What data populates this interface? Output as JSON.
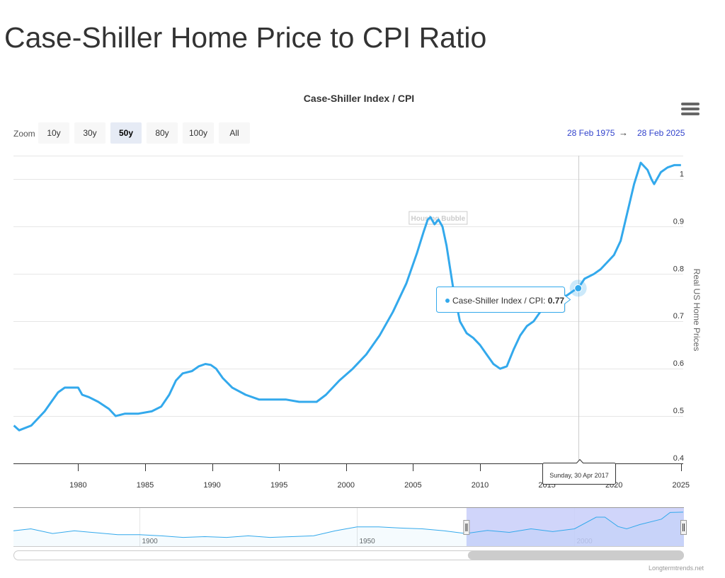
{
  "page": {
    "title": "Case-Shiller Home Price to CPI Ratio"
  },
  "toolbar": {
    "zoom_label": "Zoom",
    "zoom_buttons": [
      "10y",
      "30y",
      "50y",
      "80y",
      "100y",
      "All"
    ],
    "active_zoom": "50y",
    "range_from": "28 Feb 1975",
    "range_arrow": "→",
    "range_to": "28 Feb 2025"
  },
  "tooltip": {
    "series_label": "Case-Shiller Index / CPI: ",
    "value": "0.77",
    "date_label": "Sunday, 30 Apr 2017"
  },
  "credit": "Longtermtrends.net",
  "colors": {
    "series": "#33a9ec",
    "navigator_fill": "#ccd2fb",
    "navigator_mask": "#c8cef9",
    "range_text": "#3344cc",
    "gridline": "#e6e6e6"
  },
  "chart_data": {
    "type": "line",
    "title": "Case-Shiller Index / CPI",
    "ylabel": "Real US Home Prices",
    "xlim": [
      1975.17,
      2025.17
    ],
    "ylim": [
      0.4,
      1.05
    ],
    "yticks": [
      0.4,
      0.5,
      0.6,
      0.7,
      0.8,
      0.9,
      1
    ],
    "xticks": [
      1980,
      1985,
      1990,
      1995,
      2000,
      2005,
      2010,
      2015,
      2020,
      2025
    ],
    "grid": true,
    "annotations": [
      {
        "label": "Housing Bubble",
        "x": 2006.9,
        "y": 0.92
      }
    ],
    "highlight": {
      "x": 2017.33,
      "y": 0.77
    },
    "series": [
      {
        "name": "Case-Shiller Index / CPI",
        "x": [
          1975.2,
          1975.6,
          1976.5,
          1977.5,
          1978.0,
          1978.5,
          1979.0,
          1979.5,
          1980.0,
          1980.3,
          1980.8,
          1981.5,
          1982.3,
          1982.8,
          1983.5,
          1984.5,
          1985.5,
          1986.2,
          1986.8,
          1987.3,
          1987.8,
          1988.5,
          1989.0,
          1989.5,
          1989.9,
          1990.3,
          1990.8,
          1991.5,
          1992.5,
          1993.5,
          1994.5,
          1995.5,
          1996.5,
          1997.2,
          1997.8,
          1998.5,
          1999.5,
          2000.5,
          2001.5,
          2002.5,
          2003.5,
          2004.5,
          2005.3,
          2005.8,
          2006.1,
          2006.3,
          2006.6,
          2006.9,
          2007.2,
          2007.5,
          2008.0,
          2008.5,
          2009.0,
          2009.5,
          2010.0,
          2010.5,
          2011.0,
          2011.5,
          2012.0,
          2012.5,
          2013.0,
          2013.5,
          2014.0,
          2014.5,
          2015.0,
          2015.5,
          2016.0,
          2016.5,
          2017.0,
          2017.33,
          2017.8,
          2018.5,
          2019.0,
          2019.5,
          2020.0,
          2020.5,
          2021.0,
          2021.5,
          2022.0,
          2022.5,
          2022.8,
          2023.0,
          2023.5,
          2024.0,
          2024.5,
          2025.0
        ],
        "y": [
          0.48,
          0.47,
          0.48,
          0.51,
          0.53,
          0.55,
          0.56,
          0.56,
          0.56,
          0.545,
          0.54,
          0.53,
          0.515,
          0.5,
          0.505,
          0.505,
          0.51,
          0.52,
          0.545,
          0.575,
          0.59,
          0.595,
          0.605,
          0.61,
          0.608,
          0.6,
          0.58,
          0.56,
          0.545,
          0.535,
          0.535,
          0.535,
          0.53,
          0.53,
          0.53,
          0.545,
          0.575,
          0.6,
          0.63,
          0.67,
          0.72,
          0.78,
          0.845,
          0.89,
          0.915,
          0.92,
          0.905,
          0.915,
          0.9,
          0.86,
          0.77,
          0.7,
          0.675,
          0.665,
          0.65,
          0.63,
          0.61,
          0.6,
          0.605,
          0.64,
          0.67,
          0.69,
          0.7,
          0.72,
          0.725,
          0.74,
          0.75,
          0.755,
          0.765,
          0.77,
          0.79,
          0.8,
          0.81,
          0.825,
          0.84,
          0.87,
          0.93,
          0.99,
          1.035,
          1.02,
          1.0,
          0.99,
          1.015,
          1.025,
          1.03,
          1.03
        ]
      }
    ]
  },
  "navigator": {
    "xlim": [
      1871,
      2025.17
    ],
    "labels": [
      "1900",
      "1950",
      "2000"
    ],
    "selection": [
      1975.17,
      2025.17
    ],
    "series": {
      "x": [
        1871,
        1875,
        1880,
        1885,
        1890,
        1895,
        1900,
        1905,
        1910,
        1915,
        1920,
        1925,
        1930,
        1935,
        1940,
        1945,
        1950,
        1955,
        1960,
        1965,
        1970,
        1975,
        1980,
        1985,
        1990,
        1995,
        2000,
        2005,
        2007,
        2010,
        2012,
        2015,
        2020,
        2022,
        2025
      ],
      "y": [
        0.55,
        0.6,
        0.48,
        0.55,
        0.5,
        0.45,
        0.45,
        0.42,
        0.38,
        0.4,
        0.38,
        0.42,
        0.38,
        0.4,
        0.42,
        0.55,
        0.65,
        0.65,
        0.62,
        0.6,
        0.55,
        0.48,
        0.56,
        0.51,
        0.6,
        0.53,
        0.6,
        0.9,
        0.9,
        0.66,
        0.6,
        0.71,
        0.85,
        1.02,
        1.03
      ]
    }
  }
}
